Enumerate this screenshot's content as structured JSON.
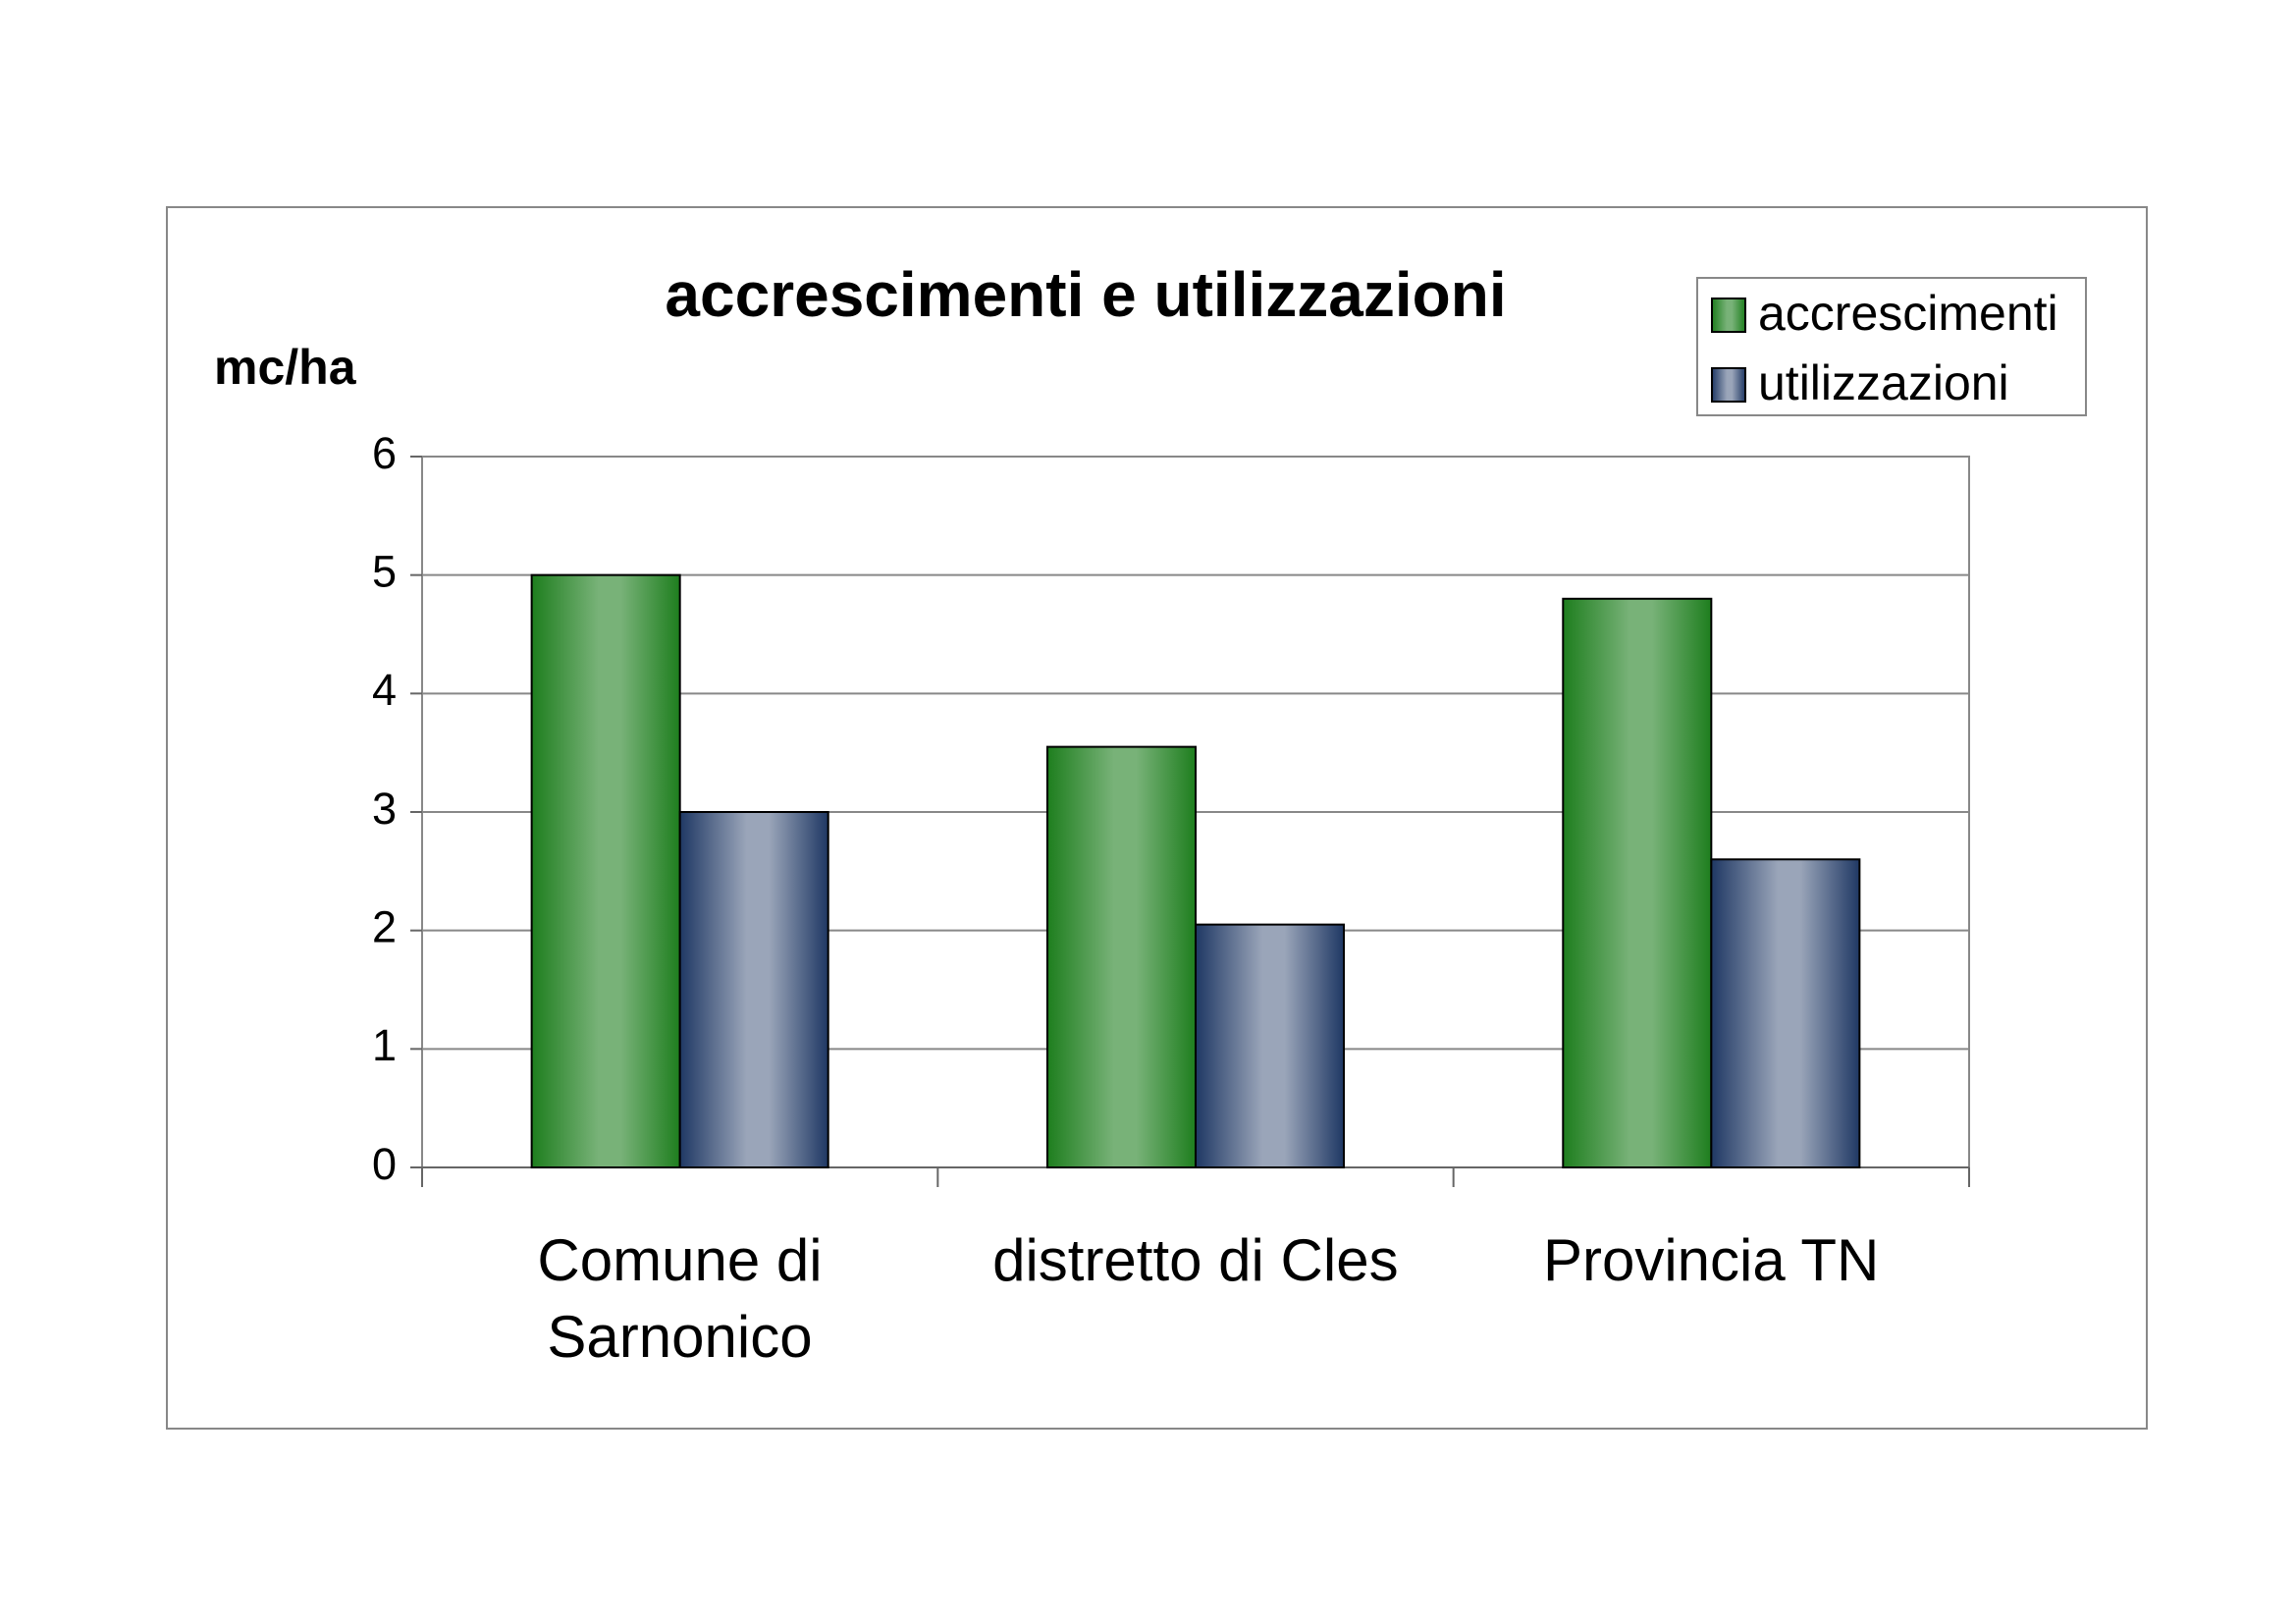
{
  "chart_data": {
    "type": "bar",
    "title": "accrescimenti e utilizzazioni",
    "y_label": "mc/ha",
    "categories": [
      "Comune di Sarnonico",
      "distretto di Cles",
      "Provincia TN"
    ],
    "series": [
      {
        "name": "accrescimenti",
        "color": "#1e7e1e",
        "values": [
          5.0,
          3.55,
          4.8
        ]
      },
      {
        "name": "utilizzazioni",
        "color": "#1f3864",
        "values": [
          3.0,
          2.05,
          2.6
        ]
      }
    ],
    "ylim": [
      0,
      6
    ],
    "yticks": [
      0,
      1,
      2,
      3,
      4,
      5,
      6
    ],
    "grid": true,
    "legend": "top-right"
  }
}
